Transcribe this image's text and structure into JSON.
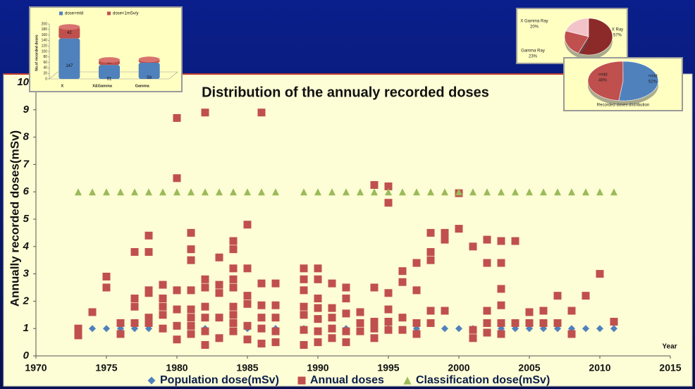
{
  "chart_data": [
    {
      "type": "scatter",
      "title": "Distribution of the annualy recorded doses",
      "x_label": "Year",
      "y_label": "Annually recorded doses(mSv)",
      "xlim": [
        1970,
        2015
      ],
      "xticks": [
        1970,
        1975,
        1980,
        1985,
        1990,
        1995,
        2000,
        2005,
        2010,
        2015
      ],
      "ylim": [
        0,
        10
      ],
      "yticks": [
        0,
        1,
        2,
        3,
        4,
        5,
        6,
        7,
        8,
        9,
        10
      ],
      "grid": false,
      "series": [
        {
          "name": "Population dose(mSv)",
          "color": "#4f81bd",
          "marker": "diamond",
          "x": [
            1974,
            1975,
            1976,
            1977,
            1978,
            1979,
            1982,
            1985,
            1987,
            1989,
            1992,
            1995,
            1997,
            1999,
            2000,
            2001,
            2003,
            2004,
            2005,
            2006,
            2007,
            2008,
            2009,
            2010,
            2011
          ],
          "values": [
            1,
            1,
            1,
            1,
            1,
            1,
            1,
            1,
            1,
            1,
            1,
            1,
            1,
            1,
            1,
            1,
            1,
            1,
            1,
            1,
            1,
            1,
            1,
            1,
            1
          ]
        },
        {
          "name": "Annual doses",
          "color": "#c0504d",
          "marker": "square",
          "x": [
            1973,
            1973,
            1974,
            1975,
            1975,
            1976,
            1976,
            1977,
            1977,
            1977,
            1977,
            1978,
            1978,
            1978,
            1978,
            1978,
            1978,
            1979,
            1979,
            1979,
            1979,
            1979,
            1980,
            1980,
            1980,
            1980,
            1980,
            1980,
            1981,
            1981,
            1981,
            1981,
            1981,
            1981,
            1981,
            1981,
            1982,
            1982,
            1982,
            1982,
            1982,
            1982,
            1982,
            1983,
            1983,
            1983,
            1983,
            1983,
            1984,
            1984,
            1984,
            1984,
            1984,
            1984,
            1984,
            1984,
            1984,
            1985,
            1985,
            1985,
            1985,
            1985,
            1985,
            1986,
            1986,
            1986,
            1986,
            1986,
            1986,
            1987,
            1987,
            1987,
            1987,
            1987,
            1989,
            1989,
            1989,
            1989,
            1989,
            1989,
            1989,
            1990,
            1990,
            1990,
            1990,
            1990,
            1990,
            1990,
            1991,
            1991,
            1991,
            1991,
            1991,
            1992,
            1992,
            1992,
            1992,
            1992,
            1993,
            1993,
            1993,
            1994,
            1994,
            1994,
            1994,
            1994,
            1995,
            1995,
            1995,
            1995,
            1995,
            1995,
            1996,
            1996,
            1996,
            1996,
            1997,
            1997,
            1997,
            1997,
            1998,
            1998,
            1998,
            1998,
            1998,
            1999,
            1999,
            1999,
            2000,
            2000,
            2001,
            2001,
            2001,
            2002,
            2002,
            2002,
            2002,
            2002,
            2003,
            2003,
            2003,
            2003,
            2003,
            2003,
            2004,
            2004,
            2005,
            2005,
            2006,
            2006,
            2007,
            2007,
            2008,
            2008,
            2009,
            2010,
            2011
          ],
          "values": [
            1.0,
            0.75,
            1.6,
            2.9,
            2.5,
            1.2,
            0.8,
            3.8,
            2.1,
            1.8,
            1.2,
            4.4,
            3.8,
            2.4,
            2.3,
            1.4,
            1.2,
            2.6,
            2.1,
            1.8,
            1.5,
            1.0,
            8.7,
            6.5,
            2.4,
            1.7,
            1.1,
            0.6,
            4.5,
            3.9,
            3.5,
            2.4,
            1.7,
            1.4,
            1.1,
            0.8,
            8.9,
            2.8,
            2.5,
            1.8,
            1.4,
            0.9,
            0.4,
            3.6,
            2.6,
            2.3,
            1.4,
            0.65,
            4.2,
            3.9,
            3.2,
            2.8,
            2.5,
            1.8,
            1.5,
            1.2,
            0.9,
            4.8,
            3.2,
            2.2,
            1.9,
            1.1,
            0.6,
            8.9,
            2.65,
            1.85,
            1.4,
            1.0,
            0.45,
            2.65,
            1.85,
            1.4,
            0.9,
            0.5,
            3.2,
            2.8,
            2.4,
            1.8,
            1.5,
            0.95,
            0.4,
            3.2,
            2.8,
            2.1,
            1.75,
            1.35,
            0.9,
            0.5,
            2.65,
            1.75,
            1.4,
            1.0,
            0.65,
            2.5,
            2.1,
            1.55,
            0.9,
            0.5,
            1.6,
            1.2,
            0.9,
            6.25,
            2.5,
            1.25,
            1.0,
            0.65,
            6.2,
            5.6,
            2.3,
            1.7,
            1.25,
            0.95,
            3.1,
            2.7,
            1.4,
            0.95,
            3.4,
            2.4,
            1.2,
            0.8,
            4.5,
            3.8,
            3.5,
            1.65,
            1.2,
            4.5,
            4.25,
            1.65,
            5.95,
            4.65,
            4.0,
            0.95,
            0.65,
            4.25,
            3.4,
            1.65,
            1.2,
            0.85,
            4.2,
            3.4,
            2.45,
            1.85,
            1.2,
            0.8,
            4.2,
            1.2,
            1.6,
            1.2,
            1.65,
            1.2,
            2.2,
            1.2,
            1.65,
            0.8,
            2.2,
            3.0,
            1.25
          ]
        },
        {
          "name": "Classification dose(mSv)",
          "color": "#9bbb59",
          "marker": "triangle",
          "x": [
            1973,
            1974,
            1975,
            1976,
            1977,
            1978,
            1979,
            1980,
            1981,
            1982,
            1983,
            1984,
            1985,
            1986,
            1987,
            1989,
            1990,
            1991,
            1992,
            1993,
            1994,
            1995,
            1996,
            1997,
            1998,
            1999,
            2000,
            2001,
            2002,
            2003,
            2004,
            2005,
            2006,
            2007,
            2008,
            2009,
            2010,
            2011
          ],
          "values": [
            6,
            6,
            6,
            6,
            6,
            6,
            6,
            6,
            6,
            6,
            6,
            6,
            6,
            6,
            6,
            6,
            6,
            6,
            6,
            6,
            6,
            6,
            6,
            6,
            6,
            6,
            6,
            6,
            6,
            6,
            6,
            6,
            6,
            6,
            6,
            6,
            6,
            6
          ]
        }
      ]
    },
    {
      "type": "bar",
      "stacked": true,
      "y_label": "No.of recorded doses",
      "categories": [
        "X",
        "X&Gamma",
        "Gamma"
      ],
      "ylim": [
        0,
        200
      ],
      "yticks": [
        0,
        20,
        40,
        60,
        80,
        100,
        120,
        140,
        160,
        180,
        200
      ],
      "series": [
        {
          "name": "dose>mld",
          "color": "#4f81bd",
          "values": [
            147,
            51,
            59
          ]
        },
        {
          "name": "dose<1mSv/y",
          "color": "#c0504d",
          "values": [
            42,
            18,
            12
          ]
        }
      ]
    },
    {
      "type": "pie",
      "categories": [
        "X Gamma Ray",
        "X Ray",
        "Gamma Ray"
      ],
      "values": [
        20,
        57,
        23
      ],
      "value_labels": [
        "20%",
        "57%",
        "23%"
      ],
      "colors": [
        "#f2c4c9",
        "#8c2a2a",
        "#c0504d"
      ]
    },
    {
      "type": "pie",
      "title": "Recorded doses distribution",
      "categories": [
        ">mld",
        "<mld"
      ],
      "values": [
        48,
        52
      ],
      "value_labels": [
        "48%",
        "52%"
      ],
      "colors": [
        "#c0504d",
        "#4f81bd"
      ]
    }
  ]
}
